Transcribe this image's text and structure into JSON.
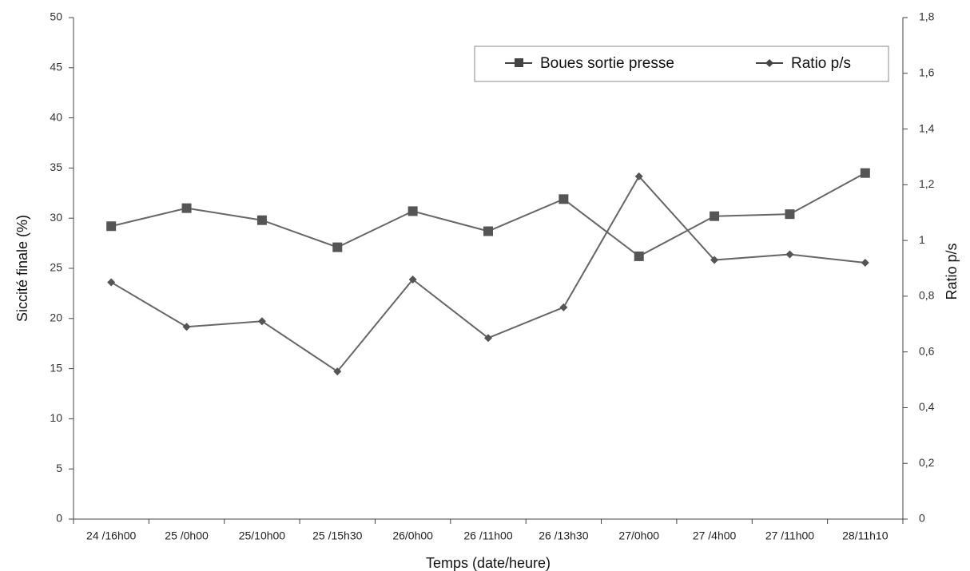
{
  "chart_data": {
    "type": "line",
    "xlabel": "Temps (date/heure)",
    "ylabel": "Siccité finale (%)",
    "y2label": "Ratio p/s",
    "ylim": [
      0,
      50
    ],
    "y_ticks": [
      "0",
      "5",
      "10",
      "15",
      "20",
      "25",
      "30",
      "35",
      "40",
      "45",
      "50"
    ],
    "y2lim": [
      0,
      1.8
    ],
    "y2_ticks": [
      "0",
      "0,2",
      "0,4",
      "0,6",
      "0,8",
      "1",
      "1,2",
      "1,4",
      "1,6",
      "1,8"
    ],
    "categories": [
      "24 /16h00",
      "25 /0h00",
      "25/10h00",
      "25 /15h30",
      "26/0h00",
      "26 /11h00",
      "26 /13h30",
      "27/0h00",
      "27 /4h00",
      "27 /11h00",
      "28/11h10"
    ],
    "grid": false,
    "legend_position": "top-right",
    "series": [
      {
        "name": "Boues sortie presse",
        "axis": "left",
        "marker": "square",
        "values": [
          29.2,
          31.0,
          29.8,
          27.1,
          30.7,
          28.7,
          31.9,
          26.2,
          30.2,
          30.4,
          34.5
        ]
      },
      {
        "name": "Ratio p/s",
        "axis": "right",
        "marker": "diamond",
        "values": [
          0.85,
          0.69,
          0.71,
          0.53,
          0.86,
          0.65,
          0.76,
          1.23,
          0.93,
          0.95,
          0.92
        ]
      }
    ],
    "colors": {
      "line": "#666666",
      "marker": "#555555",
      "axis": "#444444"
    }
  }
}
